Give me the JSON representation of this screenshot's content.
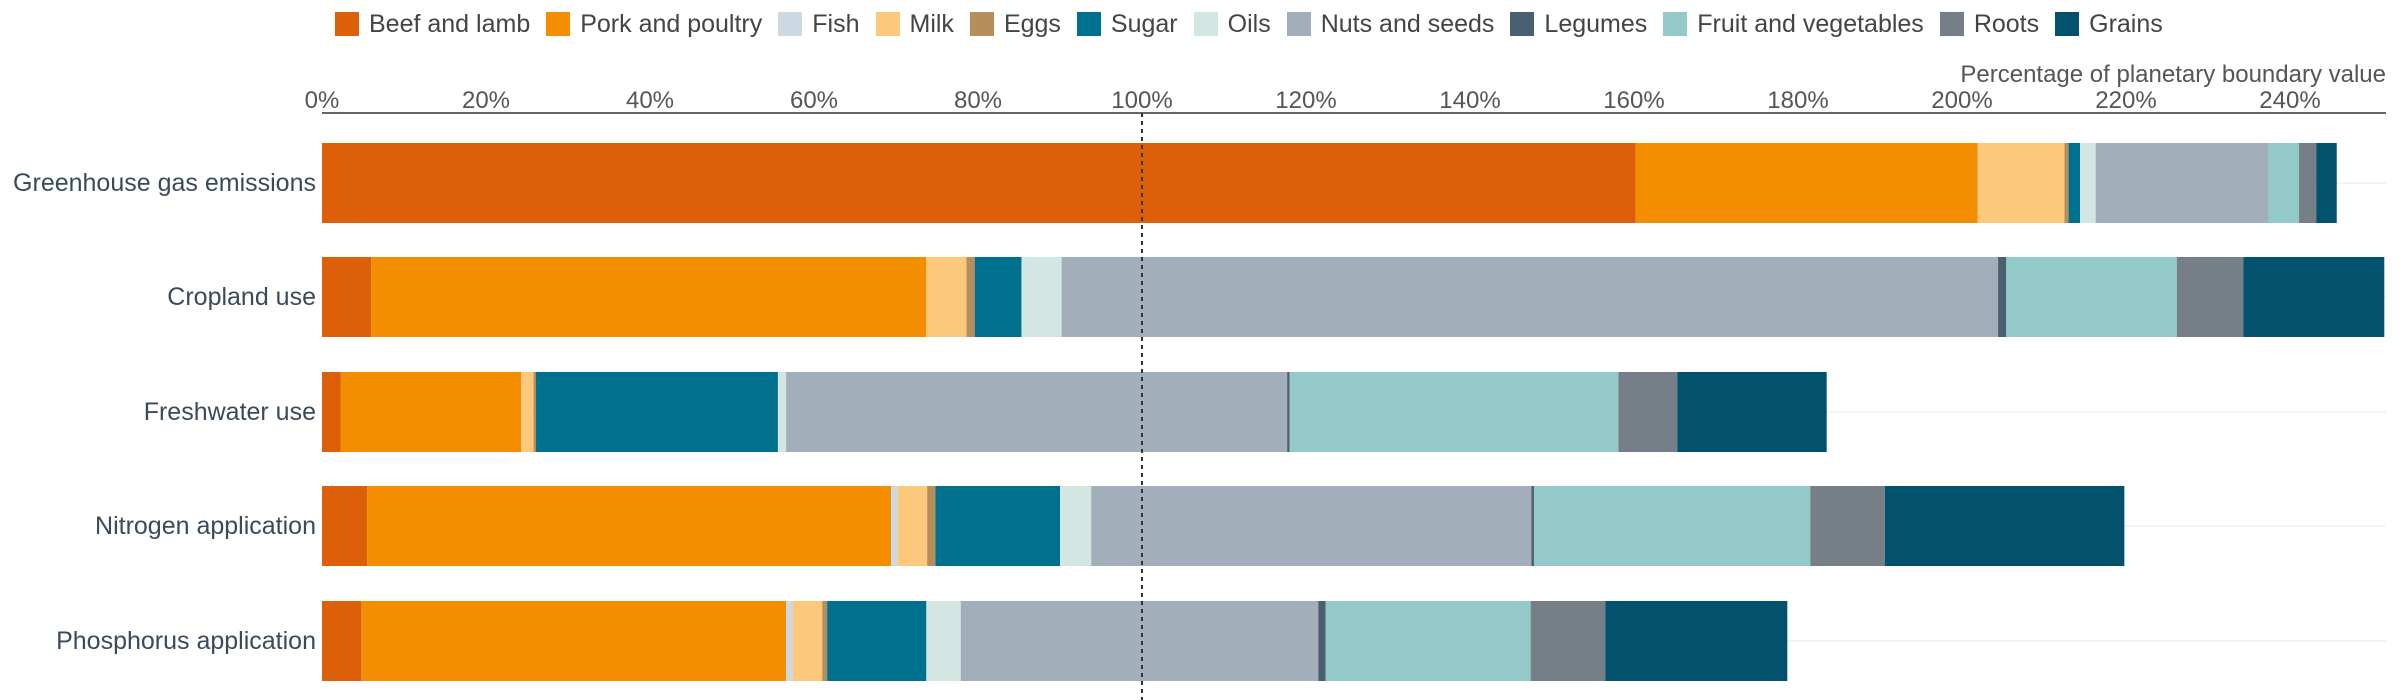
{
  "chart_data": {
    "type": "bar",
    "orientation": "horizontal",
    "stacked": true,
    "xlabel": "Percentage of planetary boundary value",
    "xlim": [
      0,
      252
    ],
    "xticks": [
      "0%",
      "20%",
      "40%",
      "60%",
      "80%",
      "100%",
      "120%",
      "140%",
      "160%",
      "180%",
      "200%",
      "220%",
      "240%"
    ],
    "xtick_values": [
      0,
      20,
      40,
      60,
      80,
      100,
      120,
      140,
      160,
      180,
      200,
      220,
      240
    ],
    "reference_line": 100,
    "grid": "x-axis baseline only, light horizontal row separators",
    "legend_placement": "top",
    "categories": [
      "Greenhouse gas emissions",
      "Cropland use",
      "Freshwater use",
      "Nitrogen application",
      "Phosphorus application"
    ],
    "series": [
      {
        "name": "Beef and lamb",
        "color": "#de5f09",
        "values": [
          160.2,
          6.0,
          2.3,
          5.5,
          4.8
        ]
      },
      {
        "name": "Pork and poultry",
        "color": "#f28e00",
        "values": [
          41.7,
          67.7,
          22.0,
          63.9,
          51.8
        ]
      },
      {
        "name": "Fish",
        "color": "#ccd9e3",
        "values": [
          0.0,
          0.0,
          0.0,
          0.8,
          0.8
        ]
      },
      {
        "name": "Milk",
        "color": "#fcc97c",
        "values": [
          10.6,
          4.9,
          1.5,
          3.6,
          3.6
        ]
      },
      {
        "name": "Eggs",
        "color": "#b68e5c",
        "values": [
          0.5,
          1.0,
          0.3,
          1.0,
          0.6
        ]
      },
      {
        "name": "Sugar",
        "color": "#00708f",
        "values": [
          1.4,
          5.7,
          29.5,
          15.2,
          12.1
        ]
      },
      {
        "name": "Oils",
        "color": "#d2e6e2",
        "values": [
          1.9,
          4.9,
          1.0,
          3.8,
          4.2
        ]
      },
      {
        "name": "Nuts and seeds",
        "color": "#a2aeb9",
        "values": [
          21.1,
          114.2,
          61.1,
          53.7,
          43.6
        ]
      },
      {
        "name": "Legumes",
        "color": "#4b5f72",
        "values": [
          0.0,
          1.0,
          0.3,
          0.3,
          0.9
        ]
      },
      {
        "name": "Fruit and vegetables",
        "color": "#93c9c8",
        "values": [
          3.7,
          20.8,
          40.1,
          33.7,
          25.0
        ]
      },
      {
        "name": "Roots",
        "color": "#767e88",
        "values": [
          2.1,
          8.1,
          7.2,
          9.1,
          9.1
        ]
      },
      {
        "name": "Grains",
        "color": "#02526e",
        "values": [
          2.5,
          17.2,
          18.2,
          29.2,
          22.2
        ]
      }
    ]
  }
}
